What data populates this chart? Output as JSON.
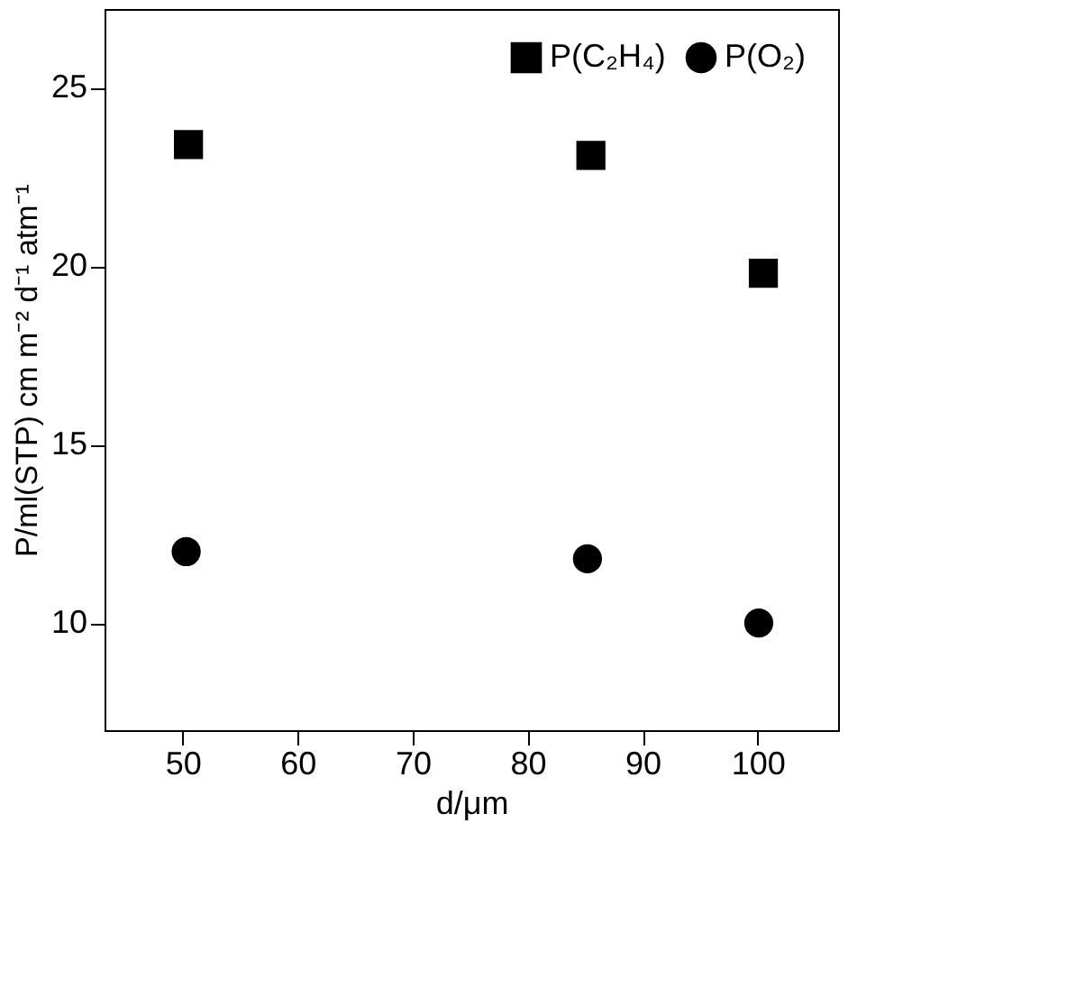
{
  "chart_data": {
    "type": "scatter",
    "xlabel": "d/μm",
    "ylabel": "P/ml(STP) cm m⁻² d⁻¹ atm⁻¹",
    "series": [
      {
        "name": "P(C₂H₄)",
        "color": "#000000",
        "marker": "square",
        "x": [
          50.5,
          85.5,
          100.5
        ],
        "values": [
          23.4,
          23.1,
          19.8
        ]
      },
      {
        "name": "P(O₂)",
        "color": "#000000",
        "marker": "circle",
        "x": [
          50.3,
          85.2,
          100.1
        ],
        "values": [
          12.0,
          11.8,
          10.0
        ]
      }
    ],
    "xlim": [
      43.2,
      107
    ],
    "xticks": [
      50,
      60,
      70,
      80,
      90,
      100
    ],
    "ylim": [
      7,
      27.2
    ],
    "yticks": [
      10,
      15,
      20,
      25
    ],
    "grid": false,
    "legend": "top right"
  }
}
